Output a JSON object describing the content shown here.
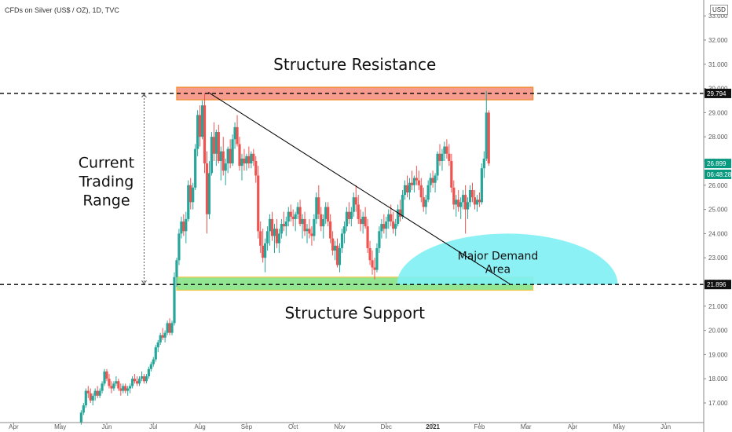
{
  "header": {
    "instrument": "CFDs on Silver (US$ / OZ), 1D, TVC",
    "currency": "USD"
  },
  "chart_data": {
    "type": "candlestick",
    "title": "CFDs on Silver (US$ / OZ), 1D, TVC",
    "xlabel": "",
    "ylabel": "",
    "ylim": [
      16.6,
      33.6
    ],
    "y_ticks": [
      17.0,
      18.0,
      19.0,
      20.0,
      21.0,
      22.0,
      23.0,
      24.0,
      25.0,
      26.0,
      27.0,
      28.0,
      29.0,
      30.0,
      31.0,
      32.0,
      33.0
    ],
    "x_ticks": [
      {
        "label": "Apr",
        "month": -2.0
      },
      {
        "label": "May",
        "month": -1.0
      },
      {
        "label": "Jun",
        "month": 0.0
      },
      {
        "label": "Jul",
        "month": 1.0
      },
      {
        "label": "Aug",
        "month": 2.0
      },
      {
        "label": "Sep",
        "month": 3.0
      },
      {
        "label": "Oct",
        "month": 4.0
      },
      {
        "label": "Nov",
        "month": 5.0
      },
      {
        "label": "Dec",
        "month": 6.0
      },
      {
        "label": "2021",
        "month": 7.0
      },
      {
        "label": "Feb",
        "month": 8.0
      },
      {
        "label": "Mar",
        "month": 9.0
      },
      {
        "label": "Apr",
        "month": 10.0
      },
      {
        "label": "May",
        "month": 11.0
      },
      {
        "label": "Jun",
        "month": 12.0
      }
    ],
    "price_labels": [
      {
        "text": "29.794",
        "value": 29.794,
        "style": "dark"
      },
      {
        "text": "26.899",
        "value": 26.899,
        "style": "green"
      },
      {
        "text": "06:48:28",
        "value": 26.45,
        "style": "green"
      },
      {
        "text": "21.896",
        "value": 21.896,
        "style": "dark"
      }
    ],
    "levels": [
      {
        "name": "resistance-line",
        "value": 29.794
      },
      {
        "name": "support-line",
        "value": 21.896
      }
    ],
    "zones": [
      {
        "name": "resistance-zone",
        "label": "Structure Resistance",
        "from": 29.53,
        "to": 30.05,
        "start_month": 1.5,
        "end_month": 9.15,
        "color": "#f48b7b",
        "border": "#f08a24"
      },
      {
        "name": "support-zone",
        "label": "Structure Support",
        "from": 21.66,
        "to": 22.2,
        "start_month": 1.5,
        "end_month": 9.15,
        "color": "#7fe27f",
        "border": "#f5c542"
      }
    ],
    "demand_area": {
      "label_line1": "Major Demand",
      "label_line2": "Area",
      "center_month": 8.6,
      "base": 21.896,
      "top": 24.0,
      "half_width_months": 2.37,
      "color": "#7ff0f4"
    },
    "trendline": {
      "from": {
        "month": 2.18,
        "value": 29.84
      },
      "to": {
        "month": 8.65,
        "value": 21.92
      }
    },
    "range_marker": {
      "label_line1": "Current",
      "label_line2": "Trading",
      "label_line3": "Range",
      "month": 0.8,
      "from": 21.896,
      "to": 29.794
    },
    "candles": [
      [
        -0.55,
        16.2,
        16.7,
        16.1,
        16.6
      ],
      [
        -0.5,
        16.6,
        17.0,
        16.5,
        16.9
      ],
      [
        -0.45,
        16.9,
        17.6,
        16.8,
        17.5
      ],
      [
        -0.4,
        17.5,
        17.7,
        17.2,
        17.4
      ],
      [
        -0.35,
        17.4,
        17.6,
        17.0,
        17.1
      ],
      [
        -0.3,
        17.1,
        17.4,
        16.9,
        17.3
      ],
      [
        -0.25,
        17.3,
        17.6,
        17.1,
        17.5
      ],
      [
        -0.2,
        17.5,
        17.7,
        17.2,
        17.3
      ],
      [
        -0.15,
        17.3,
        17.6,
        17.2,
        17.5
      ],
      [
        -0.1,
        17.5,
        17.9,
        17.4,
        17.8
      ],
      [
        -0.05,
        17.8,
        18.4,
        17.7,
        18.3
      ],
      [
        0.0,
        18.3,
        18.4,
        17.9,
        18.0
      ],
      [
        0.05,
        18.0,
        18.2,
        17.6,
        17.7
      ],
      [
        0.1,
        17.7,
        17.9,
        17.4,
        17.6
      ],
      [
        0.15,
        17.6,
        17.9,
        17.5,
        17.8
      ],
      [
        0.2,
        17.8,
        18.1,
        17.7,
        17.9
      ],
      [
        0.25,
        17.9,
        18.0,
        17.5,
        17.6
      ],
      [
        0.3,
        17.6,
        17.8,
        17.3,
        17.5
      ],
      [
        0.35,
        17.5,
        17.8,
        17.4,
        17.7
      ],
      [
        0.4,
        17.7,
        17.8,
        17.4,
        17.5
      ],
      [
        0.45,
        17.5,
        17.7,
        17.3,
        17.6
      ],
      [
        0.5,
        17.6,
        17.8,
        17.4,
        17.7
      ],
      [
        0.55,
        17.7,
        18.1,
        17.6,
        18.0
      ],
      [
        0.6,
        18.0,
        18.2,
        17.8,
        17.9
      ],
      [
        0.65,
        17.9,
        18.1,
        17.7,
        17.8
      ],
      [
        0.7,
        17.8,
        18.1,
        17.7,
        18.0
      ],
      [
        0.75,
        18.0,
        18.3,
        17.9,
        18.1
      ],
      [
        0.8,
        18.1,
        18.2,
        17.8,
        17.9
      ],
      [
        0.85,
        17.9,
        18.2,
        17.8,
        18.1
      ],
      [
        0.9,
        18.1,
        18.5,
        18.0,
        18.4
      ],
      [
        0.95,
        18.4,
        18.7,
        18.3,
        18.6
      ],
      [
        1.0,
        18.6,
        18.9,
        18.5,
        18.8
      ],
      [
        1.05,
        18.8,
        19.4,
        18.7,
        19.3
      ],
      [
        1.1,
        19.3,
        19.6,
        19.1,
        19.5
      ],
      [
        1.15,
        19.5,
        19.9,
        19.4,
        19.8
      ],
      [
        1.2,
        19.8,
        20.1,
        19.6,
        19.7
      ],
      [
        1.25,
        19.7,
        20.0,
        19.5,
        19.9
      ],
      [
        1.3,
        19.9,
        20.4,
        19.8,
        20.3
      ],
      [
        1.35,
        20.3,
        20.5,
        19.8,
        19.9
      ],
      [
        1.4,
        19.9,
        20.4,
        19.8,
        20.3
      ],
      [
        1.45,
        20.3,
        22.4,
        20.2,
        22.2
      ],
      [
        1.5,
        22.2,
        23.0,
        21.8,
        22.9
      ],
      [
        1.55,
        22.9,
        24.2,
        22.7,
        24.0
      ],
      [
        1.6,
        24.0,
        24.7,
        23.8,
        24.5
      ],
      [
        1.65,
        24.5,
        24.8,
        23.9,
        24.1
      ],
      [
        1.7,
        24.1,
        24.9,
        23.6,
        24.6
      ],
      [
        1.75,
        24.6,
        26.2,
        24.5,
        26.0
      ],
      [
        1.8,
        26.0,
        26.3,
        25.0,
        25.3
      ],
      [
        1.85,
        25.3,
        26.1,
        25.0,
        25.9
      ],
      [
        1.9,
        25.9,
        27.7,
        25.8,
        27.5
      ],
      [
        1.95,
        27.5,
        29.1,
        27.2,
        28.9
      ],
      [
        2.0,
        28.9,
        29.3,
        27.6,
        28.0
      ],
      [
        2.05,
        28.0,
        29.5,
        27.9,
        29.3
      ],
      [
        2.1,
        29.3,
        29.8,
        26.5,
        26.9
      ],
      [
        2.15,
        26.9,
        27.4,
        24.0,
        24.8
      ],
      [
        2.2,
        24.8,
        27.0,
        24.6,
        26.5
      ],
      [
        2.25,
        26.5,
        28.2,
        26.4,
        28.0
      ],
      [
        2.3,
        28.0,
        28.6,
        27.0,
        27.3
      ],
      [
        2.35,
        27.3,
        28.3,
        26.8,
        28.2
      ],
      [
        2.4,
        28.2,
        28.5,
        26.9,
        27.0
      ],
      [
        2.45,
        27.0,
        27.6,
        26.2,
        27.4
      ],
      [
        2.5,
        27.4,
        28.0,
        26.4,
        26.6
      ],
      [
        2.55,
        26.6,
        27.1,
        26.0,
        26.9
      ],
      [
        2.6,
        26.9,
        27.6,
        26.5,
        27.5
      ],
      [
        2.65,
        27.5,
        27.9,
        26.7,
        26.9
      ],
      [
        2.7,
        26.9,
        28.1,
        26.8,
        27.9
      ],
      [
        2.75,
        27.9,
        28.6,
        27.5,
        28.4
      ],
      [
        2.8,
        28.4,
        28.9,
        27.6,
        27.7
      ],
      [
        2.85,
        27.7,
        28.0,
        26.6,
        26.8
      ],
      [
        2.9,
        26.8,
        27.3,
        26.2,
        27.1
      ],
      [
        2.95,
        27.1,
        27.5,
        26.6,
        26.9
      ],
      [
        3.0,
        26.9,
        27.3,
        26.6,
        27.2
      ],
      [
        3.05,
        27.2,
        27.6,
        26.7,
        26.9
      ],
      [
        3.1,
        26.9,
        27.4,
        26.7,
        27.3
      ],
      [
        3.15,
        27.3,
        27.5,
        26.8,
        27.0
      ],
      [
        3.2,
        27.0,
        27.2,
        26.1,
        26.4
      ],
      [
        3.25,
        26.4,
        26.8,
        23.8,
        24.1
      ],
      [
        3.3,
        24.1,
        24.5,
        23.2,
        23.5
      ],
      [
        3.35,
        23.5,
        24.2,
        22.8,
        23.0
      ],
      [
        3.4,
        23.0,
        23.8,
        22.4,
        23.6
      ],
      [
        3.45,
        23.6,
        24.3,
        23.3,
        24.1
      ],
      [
        3.5,
        24.1,
        24.8,
        23.5,
        24.6
      ],
      [
        3.55,
        24.6,
        24.9,
        23.7,
        23.9
      ],
      [
        3.6,
        23.9,
        24.4,
        23.2,
        24.2
      ],
      [
        3.65,
        24.2,
        24.6,
        23.4,
        23.6
      ],
      [
        3.7,
        23.6,
        24.2,
        23.2,
        24.0
      ],
      [
        3.75,
        24.0,
        24.6,
        23.8,
        24.4
      ],
      [
        3.8,
        24.4,
        24.9,
        24.1,
        24.3
      ],
      [
        3.85,
        24.3,
        24.7,
        23.9,
        24.5
      ],
      [
        3.9,
        24.5,
        25.1,
        24.3,
        24.9
      ],
      [
        3.95,
        24.9,
        25.2,
        24.5,
        24.7
      ],
      [
        4.0,
        24.7,
        25.0,
        24.3,
        24.6
      ],
      [
        4.05,
        24.6,
        24.9,
        24.1,
        24.8
      ],
      [
        4.1,
        24.8,
        25.3,
        24.6,
        25.1
      ],
      [
        4.15,
        25.1,
        25.4,
        24.3,
        24.4
      ],
      [
        4.2,
        24.4,
        24.8,
        23.8,
        24.6
      ],
      [
        4.25,
        24.6,
        24.9,
        23.9,
        24.1
      ],
      [
        4.3,
        24.1,
        24.4,
        23.6,
        24.2
      ],
      [
        4.35,
        24.2,
        24.6,
        23.8,
        24.0
      ],
      [
        4.4,
        24.0,
        24.3,
        23.5,
        23.9
      ],
      [
        4.45,
        23.9,
        24.8,
        23.7,
        24.6
      ],
      [
        4.5,
        24.6,
        25.7,
        24.4,
        25.5
      ],
      [
        4.55,
        25.5,
        26.0,
        24.6,
        24.8
      ],
      [
        4.6,
        24.8,
        25.1,
        24.1,
        24.3
      ],
      [
        4.65,
        24.3,
        24.8,
        23.8,
        24.6
      ],
      [
        4.7,
        24.6,
        25.3,
        24.4,
        25.1
      ],
      [
        4.75,
        25.1,
        25.3,
        24.3,
        24.5
      ],
      [
        4.8,
        24.5,
        24.8,
        23.6,
        23.8
      ],
      [
        4.85,
        23.8,
        24.1,
        23.1,
        23.3
      ],
      [
        4.9,
        23.3,
        23.7,
        22.9,
        23.5
      ],
      [
        4.95,
        23.5,
        23.8,
        22.6,
        22.7
      ],
      [
        5.0,
        22.7,
        23.6,
        22.4,
        23.4
      ],
      [
        5.05,
        23.4,
        24.2,
        23.2,
        24.0
      ],
      [
        5.1,
        24.0,
        24.5,
        23.6,
        24.3
      ],
      [
        5.15,
        24.3,
        25.1,
        24.1,
        24.9
      ],
      [
        5.2,
        24.9,
        25.3,
        24.4,
        24.6
      ],
      [
        5.25,
        24.6,
        25.1,
        24.3,
        24.9
      ],
      [
        5.3,
        24.9,
        25.7,
        24.7,
        25.5
      ],
      [
        5.35,
        25.5,
        26.0,
        24.9,
        25.2
      ],
      [
        5.4,
        25.2,
        25.6,
        24.4,
        24.6
      ],
      [
        5.45,
        24.6,
        25.0,
        24.1,
        24.4
      ],
      [
        5.5,
        24.4,
        24.9,
        24.0,
        24.7
      ],
      [
        5.55,
        24.7,
        25.1,
        24.2,
        24.3
      ],
      [
        5.6,
        24.3,
        24.6,
        23.2,
        23.4
      ],
      [
        5.65,
        23.4,
        23.7,
        22.7,
        22.9
      ],
      [
        5.7,
        22.9,
        23.3,
        22.3,
        22.6
      ],
      [
        5.75,
        22.6,
        23.0,
        22.1,
        22.5
      ],
      [
        5.8,
        22.5,
        23.6,
        22.4,
        23.4
      ],
      [
        5.85,
        23.4,
        24.3,
        23.2,
        24.1
      ],
      [
        5.9,
        24.1,
        24.6,
        23.8,
        24.4
      ],
      [
        5.95,
        24.4,
        24.8,
        24.0,
        24.2
      ],
      [
        6.0,
        24.2,
        24.7,
        23.8,
        24.5
      ],
      [
        6.05,
        24.5,
        25.0,
        24.2,
        24.8
      ],
      [
        6.1,
        24.8,
        25.2,
        24.3,
        24.5
      ],
      [
        6.15,
        24.5,
        24.9,
        24.0,
        24.2
      ],
      [
        6.2,
        24.2,
        24.6,
        23.9,
        24.4
      ],
      [
        6.25,
        24.4,
        25.2,
        24.3,
        25.0
      ],
      [
        6.3,
        25.0,
        25.4,
        24.5,
        24.7
      ],
      [
        6.35,
        24.7,
        25.8,
        24.6,
        25.6
      ],
      [
        6.4,
        25.6,
        26.2,
        25.4,
        26.0
      ],
      [
        6.45,
        26.0,
        26.4,
        25.5,
        25.7
      ],
      [
        6.5,
        25.7,
        26.3,
        25.4,
        26.1
      ],
      [
        6.55,
        26.1,
        26.6,
        25.8,
        26.0
      ],
      [
        6.6,
        26.0,
        26.4,
        25.7,
        26.3
      ],
      [
        6.65,
        26.3,
        26.8,
        26.0,
        26.2
      ],
      [
        6.7,
        26.2,
        26.6,
        25.8,
        26.0
      ],
      [
        6.75,
        26.0,
        26.3,
        25.3,
        25.5
      ],
      [
        6.8,
        25.5,
        25.9,
        24.9,
        25.1
      ],
      [
        6.85,
        25.1,
        25.6,
        24.8,
        25.4
      ],
      [
        6.9,
        25.4,
        26.2,
        25.3,
        26.0
      ],
      [
        6.95,
        26.0,
        26.5,
        25.7,
        26.3
      ],
      [
        7.0,
        26.3,
        26.6,
        25.9,
        26.1
      ],
      [
        7.05,
        26.1,
        26.5,
        25.7,
        26.4
      ],
      [
        7.1,
        26.4,
        27.4,
        26.2,
        27.3
      ],
      [
        7.15,
        27.3,
        27.7,
        26.8,
        27.0
      ],
      [
        7.2,
        27.0,
        27.5,
        26.6,
        27.3
      ],
      [
        7.25,
        27.3,
        27.8,
        27.0,
        27.6
      ],
      [
        7.3,
        27.6,
        27.9,
        27.1,
        27.3
      ],
      [
        7.35,
        27.3,
        27.7,
        26.8,
        27.0
      ],
      [
        7.4,
        27.0,
        27.3,
        25.7,
        25.9
      ],
      [
        7.45,
        25.9,
        26.2,
        25.0,
        25.2
      ],
      [
        7.5,
        25.2,
        25.6,
        24.7,
        25.4
      ],
      [
        7.55,
        25.4,
        25.8,
        24.9,
        25.1
      ],
      [
        7.6,
        25.1,
        25.5,
        24.6,
        25.3
      ],
      [
        7.65,
        25.3,
        25.8,
        25.0,
        25.6
      ],
      [
        7.7,
        25.6,
        26.0,
        24.0,
        25.0
      ],
      [
        7.75,
        25.0,
        25.5,
        24.6,
        25.3
      ],
      [
        7.8,
        25.3,
        26.0,
        25.1,
        25.8
      ],
      [
        7.85,
        25.8,
        26.1,
        25.3,
        25.5
      ],
      [
        7.9,
        25.5,
        25.8,
        25.0,
        25.2
      ],
      [
        7.95,
        25.2,
        25.6,
        24.9,
        25.4
      ],
      [
        8.0,
        25.4,
        25.7,
        25.1,
        25.3
      ],
      [
        8.05,
        25.3,
        26.9,
        25.2,
        26.7
      ],
      [
        8.1,
        26.7,
        27.4,
        26.3,
        27.1
      ],
      [
        8.15,
        27.1,
        29.9,
        27.0,
        29.0
      ],
      [
        8.2,
        29.0,
        29.1,
        26.8,
        26.9
      ]
    ]
  }
}
